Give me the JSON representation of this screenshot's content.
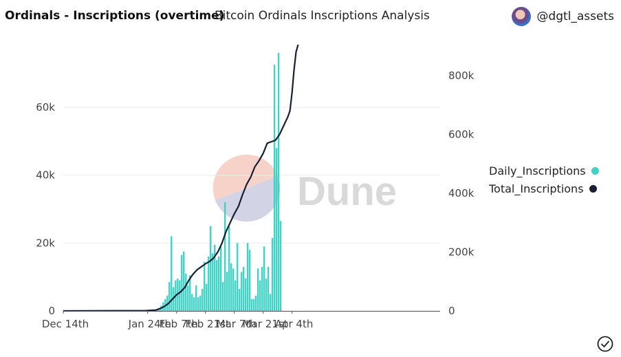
{
  "header": {
    "title": "Ordinals - Inscriptions (overtime)",
    "subtitle": "Bitcoin Ordinals Inscriptions Analysis",
    "author": "@dgtl_assets",
    "author_icon": "avatar-icon"
  },
  "watermark": "Dune",
  "footer": {
    "status_icon": "check-circle-icon"
  },
  "colors": {
    "daily": "#40d2c5",
    "total": "#152033",
    "watermark_text": "#d8d8d8"
  },
  "chart_data": {
    "type": "bar",
    "x_ticks": [
      "Dec 14th",
      "Jan 24th",
      "Feb 7th",
      "Feb 21st",
      "Mar 7th",
      "Mar 21st",
      "Apr 4th"
    ],
    "x_start": "2022-12-14",
    "left_axis": {
      "ticks": [
        "0",
        "20k",
        "40k",
        "60k"
      ],
      "ylim": [
        0,
        78000
      ]
    },
    "right_axis": {
      "ticks": [
        "0",
        "200k",
        "400k",
        "600k",
        "800k"
      ],
      "ylim": [
        0,
        900000
      ]
    },
    "grid": true,
    "legend_position": "right",
    "series": [
      {
        "name": "Daily_Inscriptions",
        "type": "bar",
        "axis": "left",
        "start": "2023-01-23",
        "values": [
          200,
          200,
          200,
          200,
          300,
          500,
          900,
          1500,
          2500,
          3500,
          4500,
          8500,
          22000,
          7000,
          9000,
          9500,
          9000,
          16500,
          17500,
          11000,
          7500,
          10500,
          5000,
          4000,
          7500,
          4000,
          4500,
          6500,
          14500,
          8000,
          16000,
          25000,
          17000,
          19500,
          15000,
          16000,
          19000,
          8500,
          32000,
          11500,
          25000,
          14000,
          12500,
          9000,
          20000,
          6500,
          11500,
          13000,
          9500,
          20000,
          18000,
          3500,
          3500,
          4500,
          12500,
          9000,
          13000,
          19000,
          9500,
          13000,
          5000,
          21500,
          72500,
          48000,
          76000,
          26500
        ]
      },
      {
        "name": "Total_Inscriptions",
        "type": "line",
        "axis": "right",
        "start": "2022-12-14",
        "points": [
          [
            "2022-12-14",
            0
          ],
          [
            "2023-01-23",
            1000
          ],
          [
            "2023-01-28",
            3000
          ],
          [
            "2023-01-30",
            8000
          ],
          [
            "2023-02-01",
            15000
          ],
          [
            "2023-02-03",
            25000
          ],
          [
            "2023-02-05",
            40000
          ],
          [
            "2023-02-07",
            55000
          ],
          [
            "2023-02-09",
            65000
          ],
          [
            "2023-02-11",
            80000
          ],
          [
            "2023-02-13",
            105000
          ],
          [
            "2023-02-15",
            125000
          ],
          [
            "2023-02-17",
            140000
          ],
          [
            "2023-02-19",
            150000
          ],
          [
            "2023-02-21",
            160000
          ],
          [
            "2023-02-23",
            168000
          ],
          [
            "2023-02-25",
            180000
          ],
          [
            "2023-02-27",
            200000
          ],
          [
            "2023-03-01",
            230000
          ],
          [
            "2023-03-03",
            270000
          ],
          [
            "2023-03-05",
            300000
          ],
          [
            "2023-03-07",
            330000
          ],
          [
            "2023-03-09",
            355000
          ],
          [
            "2023-03-11",
            395000
          ],
          [
            "2023-03-13",
            430000
          ],
          [
            "2023-03-15",
            455000
          ],
          [
            "2023-03-17",
            490000
          ],
          [
            "2023-03-19",
            510000
          ],
          [
            "2023-03-21",
            535000
          ],
          [
            "2023-03-23",
            570000
          ],
          [
            "2023-03-25",
            575000
          ],
          [
            "2023-03-27",
            580000
          ],
          [
            "2023-03-29",
            600000
          ],
          [
            "2023-03-31",
            630000
          ],
          [
            "2023-04-02",
            660000
          ],
          [
            "2023-04-03",
            680000
          ],
          [
            "2023-04-04",
            740000
          ],
          [
            "2023-04-05",
            820000
          ],
          [
            "2023-04-06",
            880000
          ],
          [
            "2023-04-07",
            905000
          ]
        ]
      }
    ]
  }
}
